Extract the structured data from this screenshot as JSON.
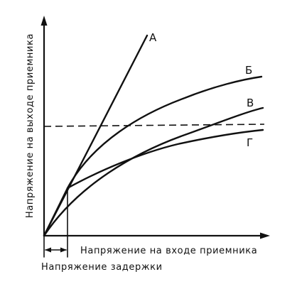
{
  "axes": {
    "y_label": "Напряжение на выходе приемника",
    "x_label": "Напряжение на входе приемника",
    "delay_label": "Напряжение задержки"
  },
  "curves": [
    {
      "key": "A",
      "label": "А"
    },
    {
      "key": "B",
      "label": "Б"
    },
    {
      "key": "V",
      "label": "В"
    },
    {
      "key": "G",
      "label": "Г"
    }
  ]
}
